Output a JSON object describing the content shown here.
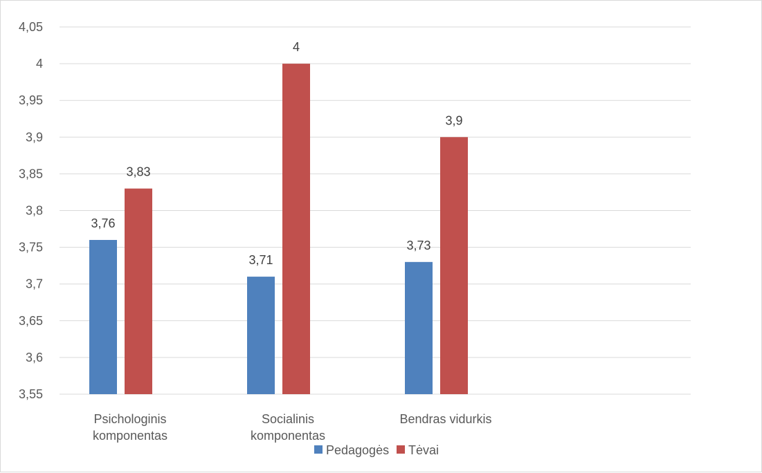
{
  "chart_data": {
    "type": "bar",
    "title": "",
    "xlabel": "",
    "ylabel": "",
    "categories": [
      [
        "Psichologinis",
        "komponentas"
      ],
      [
        "Socialinis",
        "komponentas"
      ],
      [
        "Bendras vidurkis"
      ]
    ],
    "series": [
      {
        "name": "Pedagogės",
        "values": [
          3.76,
          3.71,
          3.73
        ],
        "value_labels": [
          "3,76",
          "3,71",
          "3,73"
        ],
        "color": "#4f81bd"
      },
      {
        "name": "Tėvai",
        "values": [
          3.83,
          4.0,
          3.9
        ],
        "value_labels": [
          "3,83",
          "4",
          "3,9"
        ],
        "color": "#c0504d"
      }
    ],
    "ylim": [
      3.55,
      4.05
    ],
    "yticks": [
      3.55,
      3.6,
      3.65,
      3.7,
      3.75,
      3.8,
      3.85,
      3.9,
      3.95,
      4.0,
      4.05
    ],
    "ytick_labels": [
      "3,55",
      "3,6",
      "3,65",
      "3,7",
      "3,75",
      "3,8",
      "3,85",
      "3,9",
      "3,95",
      "4",
      "4,05"
    ],
    "grid": true,
    "legend": "bottom",
    "gridline_color": "#d9d9d9"
  }
}
